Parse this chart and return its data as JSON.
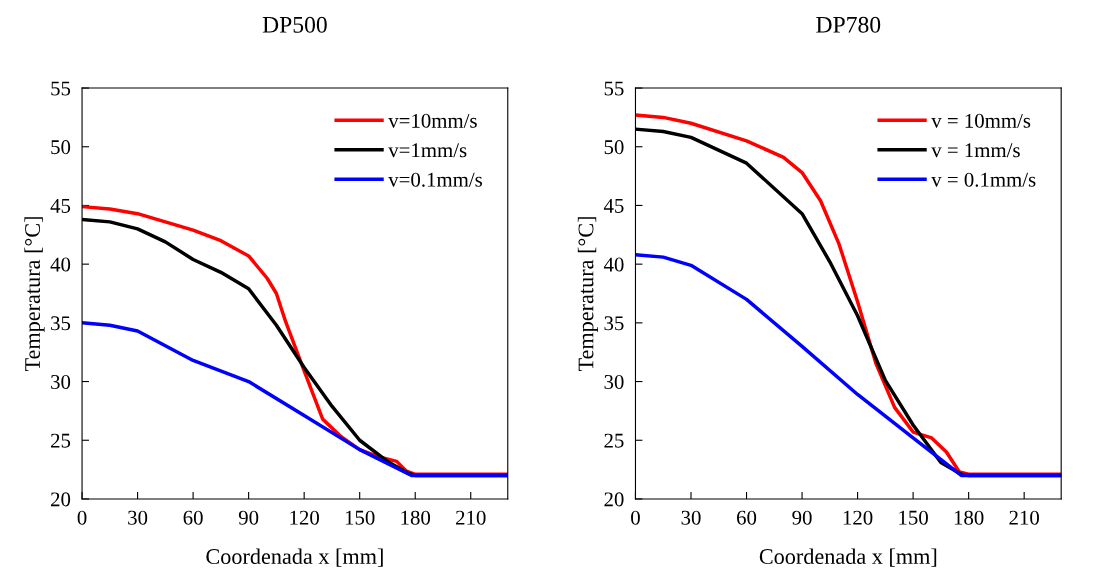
{
  "chart_data": [
    {
      "type": "line",
      "title": "DP500",
      "xlabel": "Coordenada x [mm]",
      "ylabel": "Temperatura [°C]",
      "xlim": [
        0,
        230
      ],
      "xticks": [
        0,
        30,
        60,
        90,
        120,
        150,
        180,
        210
      ],
      "ylim": [
        20,
        55
      ],
      "yticks": [
        20,
        25,
        30,
        35,
        40,
        45,
        50,
        55
      ],
      "grid": false,
      "legend": "top right",
      "marker": "none",
      "line_style": "solid",
      "series": [
        {
          "name": "v=10mm/s",
          "color": "#ff0000",
          "x": [
            0,
            15,
            30,
            45,
            60,
            75,
            90,
            100,
            105,
            110,
            120,
            130,
            140,
            150,
            160,
            170,
            175,
            180,
            230
          ],
          "values": [
            44.9,
            44.7,
            44.3,
            43.6,
            42.9,
            42.0,
            40.7,
            38.8,
            37.5,
            35.1,
            30.9,
            26.8,
            25.3,
            24.2,
            23.6,
            23.2,
            22.4,
            22.1,
            22.1
          ]
        },
        {
          "name": "v=1mm/s",
          "color": "#000000",
          "x": [
            0,
            15,
            30,
            45,
            60,
            75,
            90,
            105,
            120,
            135,
            150,
            165,
            176,
            180,
            230
          ],
          "values": [
            43.8,
            43.6,
            43.0,
            41.9,
            40.4,
            39.3,
            37.9,
            34.8,
            31.2,
            27.9,
            25.0,
            23.2,
            22.2,
            22.0,
            22.0
          ]
        },
        {
          "name": "v=0.1mm/s",
          "color": "#0000ff",
          "x": [
            0,
            15,
            30,
            60,
            90,
            120,
            150,
            178,
            230
          ],
          "values": [
            35.0,
            34.8,
            34.3,
            31.8,
            30.0,
            27.1,
            24.2,
            22.0,
            22.0
          ]
        }
      ]
    },
    {
      "type": "line",
      "title": "DP780",
      "xlabel": "Coordenada x [mm]",
      "ylabel": "Temperatura [°C]",
      "xlim": [
        0,
        230
      ],
      "xticks": [
        0,
        30,
        60,
        90,
        120,
        150,
        180,
        210
      ],
      "ylim": [
        20,
        55
      ],
      "yticks": [
        20,
        25,
        30,
        35,
        40,
        45,
        50,
        55
      ],
      "grid": false,
      "legend": "top right",
      "marker": "none",
      "line_style": "solid",
      "series": [
        {
          "name": "v = 10mm/s",
          "color": "#ff0000",
          "x": [
            0,
            15,
            30,
            60,
            80,
            90,
            100,
            110,
            120,
            130,
            140,
            150,
            160,
            168,
            175,
            180,
            230
          ],
          "values": [
            52.7,
            52.5,
            52.0,
            50.5,
            49.1,
            47.8,
            45.4,
            41.7,
            36.8,
            31.5,
            27.8,
            25.7,
            25.2,
            24.0,
            22.3,
            22.1,
            22.1
          ]
        },
        {
          "name": "v = 1mm/s",
          "color": "#000000",
          "x": [
            0,
            15,
            30,
            60,
            90,
            105,
            120,
            135,
            150,
            165,
            176,
            180,
            230
          ],
          "values": [
            51.5,
            51.3,
            50.8,
            48.6,
            44.3,
            40.2,
            35.6,
            30.1,
            26.3,
            23.1,
            22.1,
            22.0,
            22.0
          ]
        },
        {
          "name": "v = 0.1mm/s",
          "color": "#0000ff",
          "x": [
            0,
            15,
            30,
            60,
            90,
            120,
            150,
            176,
            230
          ],
          "values": [
            40.8,
            40.6,
            39.9,
            37.0,
            33.0,
            28.9,
            25.2,
            22.0,
            22.0
          ]
        }
      ]
    }
  ]
}
